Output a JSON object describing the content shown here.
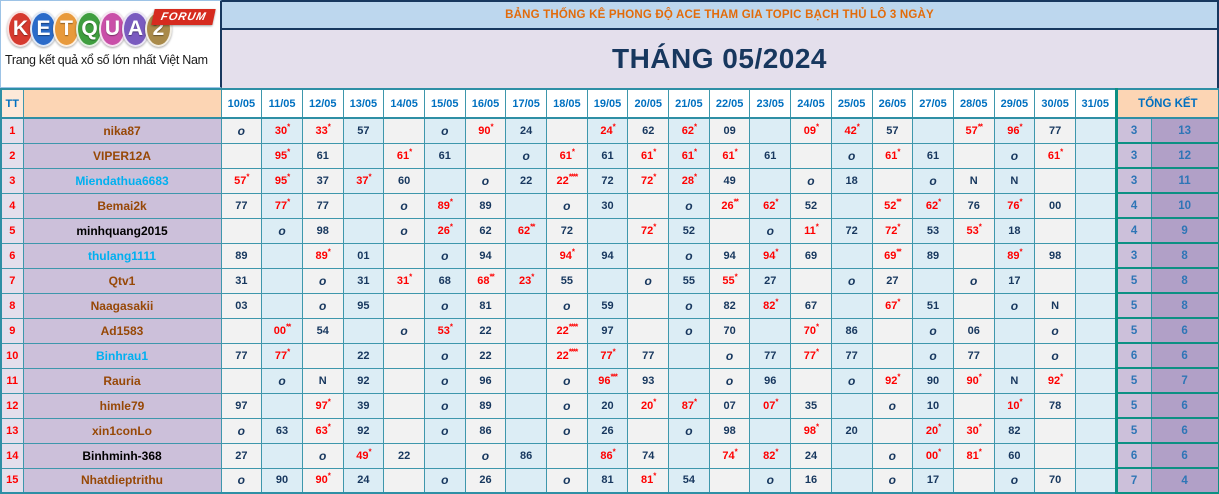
{
  "logo": {
    "letters": [
      {
        "ch": "K",
        "color": "#D63A2F"
      },
      {
        "ch": "E",
        "color": "#2B6BC9"
      },
      {
        "ch": "T",
        "color": "#E89A3C"
      },
      {
        "ch": "Q",
        "color": "#3F9E3F"
      },
      {
        "ch": "U",
        "color": "#C94FA8"
      },
      {
        "ch": "A",
        "color": "#7A5BBF"
      },
      {
        "ch": "2",
        "color": "#A98A4A"
      }
    ],
    "badge": "FORUM",
    "tagline": "Trang kết quả xổ số lớn nhất Việt Nam"
  },
  "banner": {
    "title": "BẢNG THỐNG KÊ PHONG ĐỘ ACE THAM GIA TOPIC BẠCH THỦ LÔ 3 NGÀY",
    "month_title": "THÁNG 05/2024"
  },
  "table": {
    "corner_label": "TT",
    "summary_header": "TỔNG KẾT",
    "date_columns": [
      "10/05",
      "11/05",
      "12/05",
      "13/05",
      "14/05",
      "15/05",
      "16/05",
      "17/05",
      "18/05",
      "19/05",
      "20/05",
      "21/05",
      "22/05",
      "23/05",
      "24/05",
      "25/05",
      "26/05",
      "27/05",
      "28/05",
      "29/05",
      "30/05",
      "31/05"
    ],
    "rows": [
      {
        "tt": "1",
        "name": "nika87",
        "name_color": "#974806",
        "cells": [
          "o",
          "30*",
          "33*",
          "57",
          "",
          "o",
          "90*",
          "24",
          "",
          "24*",
          "62",
          "62*",
          "09",
          "",
          "09*",
          "42*",
          "57",
          "",
          "57**",
          "96*",
          "77",
          ""
        ],
        "summary": [
          "3",
          "13"
        ]
      },
      {
        "tt": "2",
        "name": "VIPER12A",
        "name_color": "#974806",
        "cells": [
          "",
          "95*",
          "61",
          "",
          "61*",
          "61",
          "",
          "o",
          "61*",
          "61",
          "61*",
          "61*",
          "61*",
          "61",
          "",
          "o",
          "61*",
          "61",
          "",
          "o",
          "61*",
          ""
        ],
        "summary": [
          "3",
          "12"
        ]
      },
      {
        "tt": "3",
        "name": "Miendathua6683",
        "name_color": "#00B0F0",
        "cells": [
          "57*",
          "95*",
          "37",
          "37*",
          "60",
          "",
          "o",
          "22",
          "22****",
          "72",
          "72*",
          "28*",
          "49",
          "",
          "o",
          "18",
          "",
          "o",
          "N",
          "N",
          "",
          ""
        ],
        "summary": [
          "3",
          "11"
        ]
      },
      {
        "tt": "4",
        "name": "Bemai2k",
        "name_color": "#974806",
        "cells": [
          "77",
          "77*",
          "77",
          "",
          "o",
          "89*",
          "89",
          "",
          "o",
          "30",
          "",
          "o",
          "26**",
          "62*",
          "52",
          "",
          "52**",
          "62*",
          "76",
          "76*",
          "00",
          ""
        ],
        "summary": [
          "4",
          "10"
        ]
      },
      {
        "tt": "5",
        "name": "minhquang2015",
        "name_color": "#000000",
        "cells": [
          "",
          "o",
          "98",
          "",
          "o",
          "26*",
          "62",
          "62**",
          "72",
          "",
          "72*",
          "52",
          "",
          "o",
          "11*",
          "72",
          "72*",
          "53",
          "53*",
          "18",
          "",
          ""
        ],
        "summary": [
          "4",
          "9"
        ]
      },
      {
        "tt": "6",
        "name": "thulang1111",
        "name_color": "#00B0F0",
        "cells": [
          "89",
          "",
          "89*",
          "01",
          "",
          "o",
          "94",
          "",
          "94*",
          "94",
          "",
          "o",
          "94",
          "94*",
          "69",
          "",
          "69**",
          "89",
          "",
          "89*",
          "98",
          ""
        ],
        "summary": [
          "3",
          "8"
        ]
      },
      {
        "tt": "7",
        "name": "Qtv1",
        "name_color": "#974806",
        "cells": [
          "31",
          "",
          "o",
          "31",
          "31*",
          "68",
          "68**",
          "23*",
          "55",
          "",
          "o",
          "55",
          "55*",
          "27",
          "",
          "o",
          "27",
          "",
          "o",
          "17",
          "",
          ""
        ],
        "summary": [
          "5",
          "8"
        ]
      },
      {
        "tt": "8",
        "name": "Naagasakii",
        "name_color": "#974806",
        "cells": [
          "03",
          "",
          "o",
          "95",
          "",
          "o",
          "81",
          "",
          "o",
          "59",
          "",
          "o",
          "82",
          "82*",
          "67",
          "",
          "67*",
          "51",
          "",
          "o",
          "N",
          ""
        ],
        "summary": [
          "5",
          "8"
        ]
      },
      {
        "tt": "9",
        "name": "Ad1583",
        "name_color": "#974806",
        "cells": [
          "",
          "00**",
          "54",
          "",
          "o",
          "53*",
          "22",
          "",
          "22****",
          "97",
          "",
          "o",
          "70",
          "",
          "70*",
          "86",
          "",
          "o",
          "06",
          "",
          "o",
          ""
        ],
        "summary": [
          "5",
          "6"
        ]
      },
      {
        "tt": "10",
        "name": "Binhrau1",
        "name_color": "#00B0F0",
        "cells": [
          "77",
          "77*",
          "",
          "22",
          "",
          "o",
          "22",
          "",
          "22****",
          "77*",
          "77",
          "",
          "o",
          "77",
          "77*",
          "77",
          "",
          "o",
          "77",
          "",
          "o",
          ""
        ],
        "summary": [
          "6",
          "6"
        ]
      },
      {
        "tt": "11",
        "name": "Rauria",
        "name_color": "#974806",
        "cells": [
          "",
          "o",
          "N",
          "92",
          "",
          "o",
          "96",
          "",
          "o",
          "96***",
          "93",
          "",
          "o",
          "96",
          "",
          "o",
          "92*",
          "90",
          "90*",
          "N",
          "92*",
          ""
        ],
        "summary": [
          "5",
          "7"
        ]
      },
      {
        "tt": "12",
        "name": "himle79",
        "name_color": "#974806",
        "cells": [
          "97",
          "",
          "97*",
          "39",
          "",
          "o",
          "89",
          "",
          "o",
          "20",
          "20*",
          "87*",
          "07",
          "07*",
          "35",
          "",
          "o",
          "10",
          "",
          "10*",
          "78",
          ""
        ],
        "summary": [
          "5",
          "6"
        ]
      },
      {
        "tt": "13",
        "name": "xin1conLo",
        "name_color": "#974806",
        "cells": [
          "o",
          "63",
          "63*",
          "92",
          "",
          "o",
          "86",
          "",
          "o",
          "26",
          "",
          "o",
          "98",
          "",
          "98*",
          "20",
          "",
          "20*",
          "30*",
          "82",
          "",
          ""
        ],
        "summary": [
          "5",
          "6"
        ]
      },
      {
        "tt": "14",
        "name": "Binhminh-368",
        "name_color": "#000000",
        "cells": [
          "27",
          "",
          "o",
          "49*",
          "22",
          "",
          "o",
          "86",
          "",
          "86*",
          "74",
          "",
          "74*",
          "82*",
          "24",
          "",
          "o",
          "00*",
          "81*",
          "60",
          "",
          ""
        ],
        "summary": [
          "6",
          "6"
        ]
      },
      {
        "tt": "15",
        "name": "Nhatdieptrithu",
        "name_color": "#974806",
        "cells": [
          "o",
          "90",
          "90*",
          "24",
          "",
          "o",
          "26",
          "",
          "o",
          "81",
          "81*",
          "54",
          "",
          "o",
          "16",
          "",
          "o",
          "17",
          "",
          "o",
          "70",
          ""
        ],
        "summary": [
          "7",
          "4"
        ]
      }
    ]
  }
}
